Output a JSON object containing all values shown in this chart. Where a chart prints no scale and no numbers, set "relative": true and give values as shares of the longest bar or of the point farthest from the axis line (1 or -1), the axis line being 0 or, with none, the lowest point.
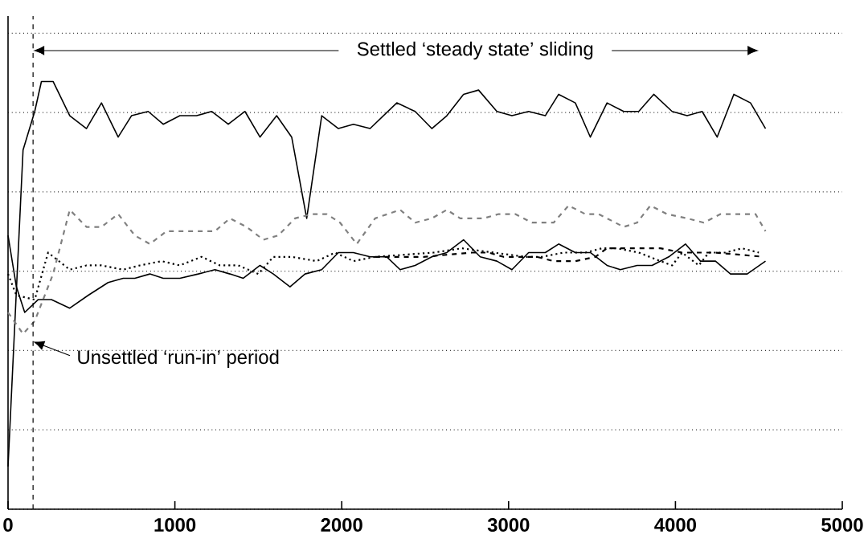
{
  "chart_data": {
    "type": "line",
    "relative": true,
    "xlim": [
      0,
      5000
    ],
    "xticks": [
      0,
      1000,
      2000,
      3000,
      4000,
      5000
    ],
    "grid": "y",
    "annotations": [
      "Settled ‘steady state’ sliding",
      "Unsettled ‘run-in’ period"
    ],
    "ref_lines": [
      {
        "axis": "x",
        "value": 150,
        "line_style": "dashed"
      }
    ],
    "series": [
      {
        "color": "#000000",
        "line_style": "solid",
        "x": [
          0,
          90,
          160,
          200,
          270,
          370,
          470,
          560,
          660,
          740,
          840,
          930,
          1030,
          1130,
          1220,
          1320,
          1420,
          1510,
          1610,
          1700,
          1790,
          1880,
          1980,
          2070,
          2170,
          2330,
          2440,
          2540,
          2630,
          2730,
          2820,
          2930,
          3020,
          3120,
          3220,
          3300,
          3400,
          3490,
          3590,
          3690,
          3780,
          3870,
          3980,
          4070,
          4160,
          4250,
          4350,
          4450,
          4540
        ],
        "values": [
          0.1,
          0.84,
          0.93,
          1.0,
          1.0,
          0.92,
          0.89,
          0.95,
          0.87,
          0.92,
          0.93,
          0.9,
          0.92,
          0.92,
          0.93,
          0.9,
          0.93,
          0.87,
          0.92,
          0.87,
          0.68,
          0.92,
          0.89,
          0.9,
          0.89,
          0.95,
          0.93,
          0.89,
          0.92,
          0.97,
          0.98,
          0.93,
          0.92,
          0.93,
          0.92,
          0.97,
          0.95,
          0.87,
          0.95,
          0.93,
          0.93,
          0.97,
          0.93,
          0.92,
          0.93,
          0.87,
          0.97,
          0.95,
          0.89
        ]
      },
      {
        "color": "#808080",
        "line_style": "dashed",
        "x": [
          0,
          90,
          160,
          270,
          370,
          470,
          560,
          660,
          760,
          850,
          950,
          1050,
          1140,
          1240,
          1330,
          1430,
          1530,
          1620,
          1720,
          1820,
          1910,
          1990,
          2090,
          2200,
          2350,
          2440,
          2540,
          2630,
          2710,
          2850,
          2940,
          3040,
          3140,
          3270,
          3360,
          3460,
          3540,
          3690,
          3770,
          3850,
          3950,
          4070,
          4170,
          4270,
          4400,
          4480,
          4540
        ],
        "values": [
          0.46,
          0.41,
          0.44,
          0.55,
          0.7,
          0.66,
          0.66,
          0.69,
          0.64,
          0.62,
          0.65,
          0.65,
          0.65,
          0.65,
          0.68,
          0.66,
          0.63,
          0.64,
          0.68,
          0.69,
          0.69,
          0.67,
          0.62,
          0.68,
          0.7,
          0.67,
          0.68,
          0.7,
          0.68,
          0.68,
          0.69,
          0.69,
          0.67,
          0.67,
          0.71,
          0.69,
          0.69,
          0.66,
          0.67,
          0.71,
          0.69,
          0.68,
          0.67,
          0.69,
          0.69,
          0.69,
          0.65
        ]
      },
      {
        "color": "#000000",
        "line_style": "dotted",
        "x": [
          0,
          50,
          160,
          240,
          370,
          470,
          560,
          690,
          790,
          920,
          1030,
          1160,
          1270,
          1380,
          1500,
          1590,
          1700,
          1850,
          1960,
          2070,
          2200,
          2550,
          2720,
          2910,
          3100,
          3200,
          3330,
          3460,
          3560,
          3650,
          3780,
          3910,
          3980,
          4040,
          4140,
          4200,
          4300,
          4400,
          4500
        ],
        "values": [
          0.55,
          0.5,
          0.49,
          0.6,
          0.56,
          0.57,
          0.57,
          0.56,
          0.57,
          0.58,
          0.57,
          0.59,
          0.57,
          0.57,
          0.55,
          0.59,
          0.59,
          0.58,
          0.6,
          0.58,
          0.59,
          0.6,
          0.61,
          0.6,
          0.59,
          0.59,
          0.6,
          0.6,
          0.61,
          0.61,
          0.6,
          0.58,
          0.57,
          0.6,
          0.57,
          0.6,
          0.6,
          0.61,
          0.6
        ]
      },
      {
        "color": "#000000",
        "line_style": "dashed",
        "x": [
          2200,
          2490,
          2780,
          2880,
          2970,
          3170,
          3270,
          3400,
          3520,
          3590,
          3690,
          3820,
          3910,
          4040,
          4240,
          4530
        ],
        "values": [
          0.59,
          0.59,
          0.6,
          0.6,
          0.59,
          0.59,
          0.58,
          0.58,
          0.59,
          0.61,
          0.61,
          0.61,
          0.61,
          0.6,
          0.6,
          0.59
        ]
      },
      {
        "color": "#000000",
        "line_style": "solid",
        "x": [
          0,
          50,
          100,
          180,
          260,
          370,
          480,
          600,
          690,
          760,
          850,
          930,
          1030,
          1140,
          1240,
          1330,
          1410,
          1510,
          1590,
          1690,
          1780,
          1880,
          1980,
          2070,
          2170,
          2270,
          2350,
          2440,
          2540,
          2630,
          2730,
          2830,
          2930,
          3020,
          3120,
          3220,
          3300,
          3400,
          3490,
          3590,
          3670,
          3770,
          3860,
          3960,
          4060,
          4150,
          4240,
          4330,
          4430,
          4540
        ],
        "values": [
          0.64,
          0.52,
          0.46,
          0.49,
          0.49,
          0.47,
          0.5,
          0.53,
          0.54,
          0.54,
          0.55,
          0.54,
          0.54,
          0.55,
          0.56,
          0.55,
          0.54,
          0.57,
          0.55,
          0.52,
          0.55,
          0.56,
          0.6,
          0.6,
          0.59,
          0.59,
          0.56,
          0.57,
          0.59,
          0.6,
          0.63,
          0.59,
          0.58,
          0.56,
          0.6,
          0.6,
          0.62,
          0.6,
          0.6,
          0.57,
          0.56,
          0.57,
          0.57,
          0.59,
          0.62,
          0.58,
          0.58,
          0.55,
          0.55,
          0.58
        ]
      }
    ]
  }
}
